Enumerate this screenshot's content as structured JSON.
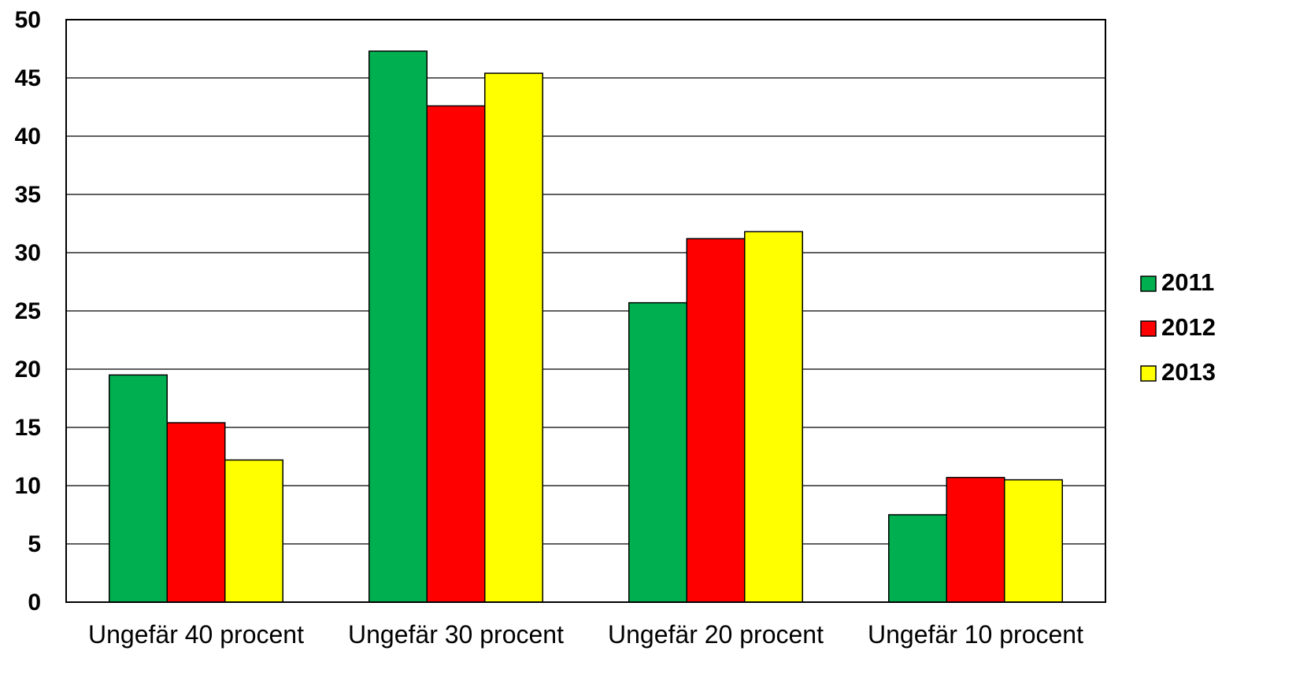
{
  "chart_data": {
    "type": "bar",
    "title": "",
    "xlabel": "",
    "ylabel": "",
    "categories": [
      "Ungefär 40 procent",
      "Ungefär 30 procent",
      "Ungefär 20 procent",
      "Ungefär 10 procent"
    ],
    "series": [
      {
        "name": "2011",
        "color": "#00b050",
        "values": [
          19.5,
          47.3,
          25.7,
          7.5
        ]
      },
      {
        "name": "2012",
        "color": "#ff0000",
        "values": [
          15.4,
          42.6,
          31.2,
          10.7
        ]
      },
      {
        "name": "2013",
        "color": "#ffff00",
        "values": [
          12.2,
          45.4,
          31.8,
          10.5
        ]
      }
    ],
    "ylim": [
      0,
      50
    ],
    "yticks": [
      0,
      5,
      10,
      15,
      20,
      25,
      30,
      35,
      40,
      45,
      50
    ],
    "grid": true,
    "legend_position": "right"
  }
}
